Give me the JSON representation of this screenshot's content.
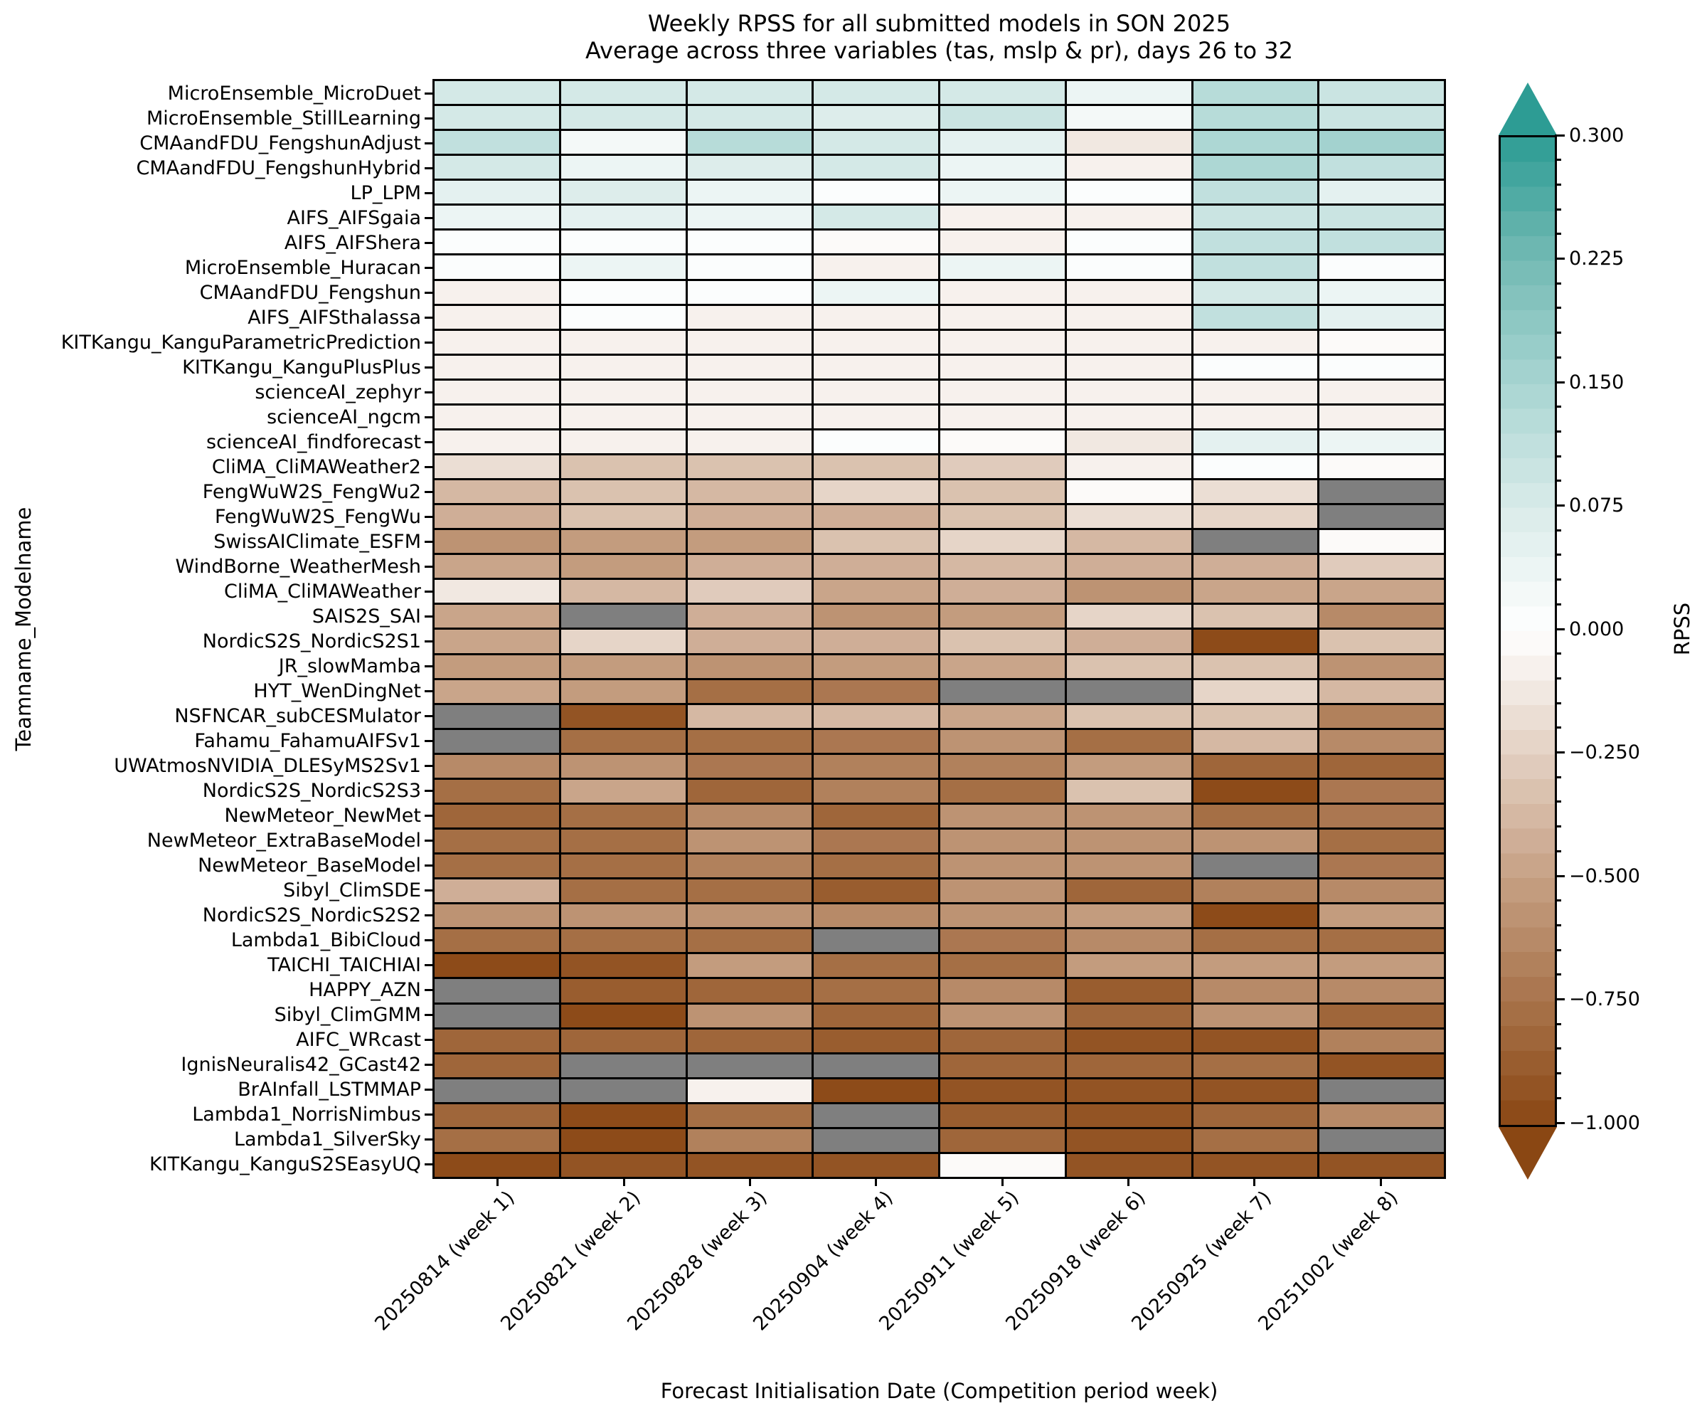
{
  "chart_data": {
    "type": "heatmap",
    "title": "Weekly RPSS for all submitted models in SON 2025",
    "subtitle": "Average across three variables (tas, mslp & pr), days 26 to 32",
    "xlabel": "Forecast Initialisation Date (Competition period week)",
    "ylabel": "Teamname_Modelname",
    "grid": false,
    "columns": [
      "20250814 (week 1)",
      "20250821 (week 2)",
      "20250828 (week 3)",
      "20250904 (week 4)",
      "20250911 (week 5)",
      "20250918 (week 6)",
      "20250925 (week 7)",
      "20251002 (week 8)"
    ],
    "rows": [
      {
        "model": "MicroEnsemble_MicroDuet",
        "values": [
          0.08,
          0.08,
          0.08,
          0.075,
          0.08,
          0.03,
          0.13,
          0.1
        ]
      },
      {
        "model": "MicroEnsemble_StillLearning",
        "values": [
          0.085,
          0.08,
          0.08,
          0.06,
          0.09,
          0.025,
          0.13,
          0.095
        ]
      },
      {
        "model": "CMAandFDU_FengshunAdjust",
        "values": [
          0.11,
          0.02,
          0.12,
          0.08,
          0.055,
          -0.11,
          0.135,
          0.15
        ]
      },
      {
        "model": "CMAandFDU_FengshunHybrid",
        "values": [
          0.075,
          0.04,
          0.065,
          0.075,
          0.035,
          -0.06,
          0.14,
          0.105
        ]
      },
      {
        "model": "LP_LPM",
        "values": [
          0.05,
          0.065,
          0.03,
          0.005,
          0.03,
          0.005,
          0.115,
          0.045
        ]
      },
      {
        "model": "AIFS_AIFSgaia",
        "values": [
          0.035,
          0.045,
          0.04,
          0.08,
          -0.06,
          -0.06,
          0.1,
          0.1
        ]
      },
      {
        "model": "AIFS_AIFShera",
        "values": [
          0.005,
          0.005,
          0.005,
          -0.04,
          -0.06,
          0.005,
          0.105,
          0.105
        ]
      },
      {
        "model": "MicroEnsemble_Huracan",
        "values": [
          0.005,
          0.04,
          0.005,
          -0.05,
          0.035,
          0.005,
          0.115,
          0.005
        ]
      },
      {
        "model": "CMAandFDU_Fengshun",
        "values": [
          -0.05,
          0.005,
          0.005,
          0.04,
          -0.06,
          -0.08,
          0.085,
          0.04
        ]
      },
      {
        "model": "AIFS_AIFSthalassa",
        "values": [
          -0.06,
          0.005,
          -0.05,
          -0.07,
          -0.06,
          -0.07,
          0.115,
          0.055
        ]
      },
      {
        "model": "KITKangu_KanguParametricPrediction",
        "values": [
          -0.06,
          -0.06,
          -0.06,
          -0.06,
          -0.06,
          -0.06,
          -0.05,
          -0.04
        ]
      },
      {
        "model": "KITKangu_KanguPlusPlus",
        "values": [
          -0.06,
          -0.06,
          -0.06,
          -0.06,
          -0.06,
          -0.06,
          0.01,
          0.01
        ]
      },
      {
        "model": "scienceAI_zephyr",
        "values": [
          -0.06,
          -0.07,
          -0.06,
          -0.06,
          -0.06,
          -0.06,
          -0.06,
          -0.06
        ]
      },
      {
        "model": "scienceAI_ngcm",
        "values": [
          -0.07,
          -0.06,
          -0.07,
          -0.08,
          -0.06,
          -0.07,
          -0.06,
          -0.08
        ]
      },
      {
        "model": "scienceAI_findforecast",
        "values": [
          -0.06,
          -0.08,
          -0.08,
          0.005,
          -0.02,
          -0.11,
          0.05,
          0.035
        ]
      },
      {
        "model": "CliMA_CliMAWeather2",
        "values": [
          -0.16,
          -0.33,
          -0.33,
          -0.34,
          -0.3,
          -0.09,
          0.005,
          -0.04
        ]
      },
      {
        "model": "FengWuW2S_FengWu2",
        "values": [
          -0.36,
          -0.35,
          -0.37,
          -0.24,
          -0.33,
          -0.04,
          -0.18,
          null
        ]
      },
      {
        "model": "FengWuW2S_FengWu",
        "values": [
          -0.43,
          -0.34,
          -0.44,
          -0.41,
          -0.35,
          -0.19,
          -0.21,
          null
        ]
      },
      {
        "model": "SwissAIClimate_ESFM",
        "values": [
          -0.58,
          -0.5,
          -0.5,
          -0.33,
          -0.21,
          -0.38,
          null,
          -0.03
        ]
      },
      {
        "model": "WindBorne_WeatherMesh",
        "values": [
          -0.45,
          -0.54,
          -0.4,
          -0.4,
          -0.38,
          -0.4,
          -0.43,
          -0.28
        ]
      },
      {
        "model": "CliMA_CliMAWeather",
        "values": [
          -0.12,
          -0.38,
          -0.27,
          -0.48,
          -0.42,
          -0.6,
          -0.47,
          -0.47
        ]
      },
      {
        "model": "SAIS2S_SAI",
        "values": [
          -0.46,
          null,
          -0.44,
          -0.59,
          -0.51,
          -0.24,
          -0.32,
          -0.64
        ]
      },
      {
        "model": "NordicS2S_NordicS2S1",
        "values": [
          -0.45,
          -0.22,
          -0.43,
          -0.4,
          -0.34,
          -0.44,
          -0.97,
          -0.35
        ]
      },
      {
        "model": "JR_slowMamba",
        "values": [
          -0.52,
          -0.54,
          -0.55,
          -0.5,
          -0.46,
          -0.32,
          -0.31,
          -0.56
        ]
      },
      {
        "model": "HYT_WenDingNet",
        "values": [
          -0.48,
          -0.5,
          -0.78,
          -0.72,
          null,
          null,
          -0.2,
          -0.36
        ]
      },
      {
        "model": "NSFNCAR_subCESMulator",
        "values": [
          null,
          -0.93,
          -0.36,
          -0.36,
          -0.45,
          -0.33,
          -0.33,
          -0.7
        ]
      },
      {
        "model": "Fahamu_FahamuAIFSv1",
        "values": [
          null,
          -0.77,
          -0.78,
          -0.72,
          -0.57,
          -0.78,
          -0.38,
          -0.61
        ]
      },
      {
        "model": "UWAtmosNVIDIA_DLESyMS2Sv1",
        "values": [
          -0.64,
          -0.6,
          -0.72,
          -0.7,
          -0.65,
          -0.51,
          -0.84,
          -0.82
        ]
      },
      {
        "model": "NordicS2S_NordicS2S3",
        "values": [
          -0.76,
          -0.49,
          -0.8,
          -0.67,
          -0.78,
          -0.33,
          -0.97,
          -0.72
        ]
      },
      {
        "model": "NewMeteor_NewMet",
        "values": [
          -0.8,
          -0.79,
          -0.63,
          -0.82,
          -0.6,
          -0.6,
          -0.78,
          -0.72
        ]
      },
      {
        "model": "NewMeteor_ExtraBaseModel",
        "values": [
          -0.78,
          -0.78,
          -0.58,
          -0.74,
          -0.58,
          -0.58,
          -0.6,
          -0.77
        ]
      },
      {
        "model": "NewMeteor_BaseModel",
        "values": [
          -0.79,
          -0.78,
          -0.67,
          -0.75,
          -0.58,
          -0.6,
          null,
          -0.72
        ]
      },
      {
        "model": "Sibyl_ClimSDE",
        "values": [
          -0.4,
          -0.78,
          -0.78,
          -0.86,
          -0.58,
          -0.84,
          -0.67,
          -0.64
        ]
      },
      {
        "model": "NordicS2S_NordicS2S2",
        "values": [
          -0.56,
          -0.58,
          -0.57,
          -0.61,
          -0.56,
          -0.53,
          -0.97,
          -0.52
        ]
      },
      {
        "model": "Lambda1_BibiCloud",
        "values": [
          -0.78,
          -0.77,
          -0.78,
          null,
          -0.74,
          -0.64,
          -0.78,
          -0.76
        ]
      },
      {
        "model": "TAICHI_TAICHIAI",
        "values": [
          -0.97,
          -0.92,
          -0.54,
          -0.79,
          -0.76,
          -0.5,
          -0.54,
          -0.54
        ]
      },
      {
        "model": "HAPPY_AZN",
        "values": [
          null,
          -0.85,
          -0.84,
          -0.76,
          -0.62,
          -0.88,
          -0.63,
          -0.63
        ]
      },
      {
        "model": "Sibyl_ClimGMM",
        "values": [
          null,
          -0.97,
          -0.57,
          -0.84,
          -0.58,
          -0.83,
          -0.55,
          -0.83
        ]
      },
      {
        "model": "AIFC_WRcast",
        "values": [
          -0.84,
          -0.83,
          -0.83,
          -0.87,
          -0.82,
          -0.95,
          -0.95,
          -0.7
        ]
      },
      {
        "model": "IgnisNeuralis42_GCast42",
        "values": [
          -0.84,
          null,
          null,
          null,
          -0.82,
          -0.83,
          -0.79,
          -0.95
        ]
      },
      {
        "model": "BrAInfall_LSTMMAP",
        "values": [
          null,
          null,
          -0.06,
          -0.97,
          -0.95,
          -0.95,
          -0.95,
          null
        ]
      },
      {
        "model": "Lambda1_NorrisNimbus",
        "values": [
          -0.83,
          -0.97,
          -0.79,
          null,
          -0.87,
          -0.95,
          -0.82,
          -0.62
        ]
      },
      {
        "model": "Lambda1_SilverSky",
        "values": [
          -0.77,
          -0.97,
          -0.67,
          null,
          -0.82,
          -0.95,
          -0.78,
          null
        ]
      },
      {
        "model": "KITKangu_KanguS2SEasyUQ",
        "values": [
          -0.97,
          -0.95,
          -0.95,
          -0.93,
          -0.02,
          -0.92,
          -0.92,
          -0.92
        ]
      }
    ],
    "colorbar": {
      "label": "RPSS",
      "vmin": -1.0,
      "vcenter": 0.0,
      "vmax": 0.3,
      "bins_per_half": 20,
      "tick_labels": [
        "0.300",
        "0.225",
        "0.150",
        "0.075",
        "0.000",
        "−0.250",
        "−0.500",
        "−0.750",
        "−1.000"
      ],
      "positive_stops": [
        [
          0.0,
          "#ffffff"
        ],
        [
          0.075,
          "#d9ebe9"
        ],
        [
          0.15,
          "#a8d5d2"
        ],
        [
          0.225,
          "#74bab4"
        ],
        [
          0.3,
          "#2d9c94"
        ]
      ],
      "negative_stops": [
        [
          0.0,
          "#ffffff"
        ],
        [
          0.25,
          "#e3d0c2"
        ],
        [
          0.5,
          "#c6a084"
        ],
        [
          0.75,
          "#a8734b"
        ],
        [
          1.0,
          "#8a4713"
        ]
      ],
      "over_color": "#2d9c94",
      "under_color": "#8a4713"
    },
    "colors": {
      "missing": "#7f7f7f",
      "grid_line": "#000000",
      "background": "#ffffff",
      "text": "#000000"
    }
  }
}
